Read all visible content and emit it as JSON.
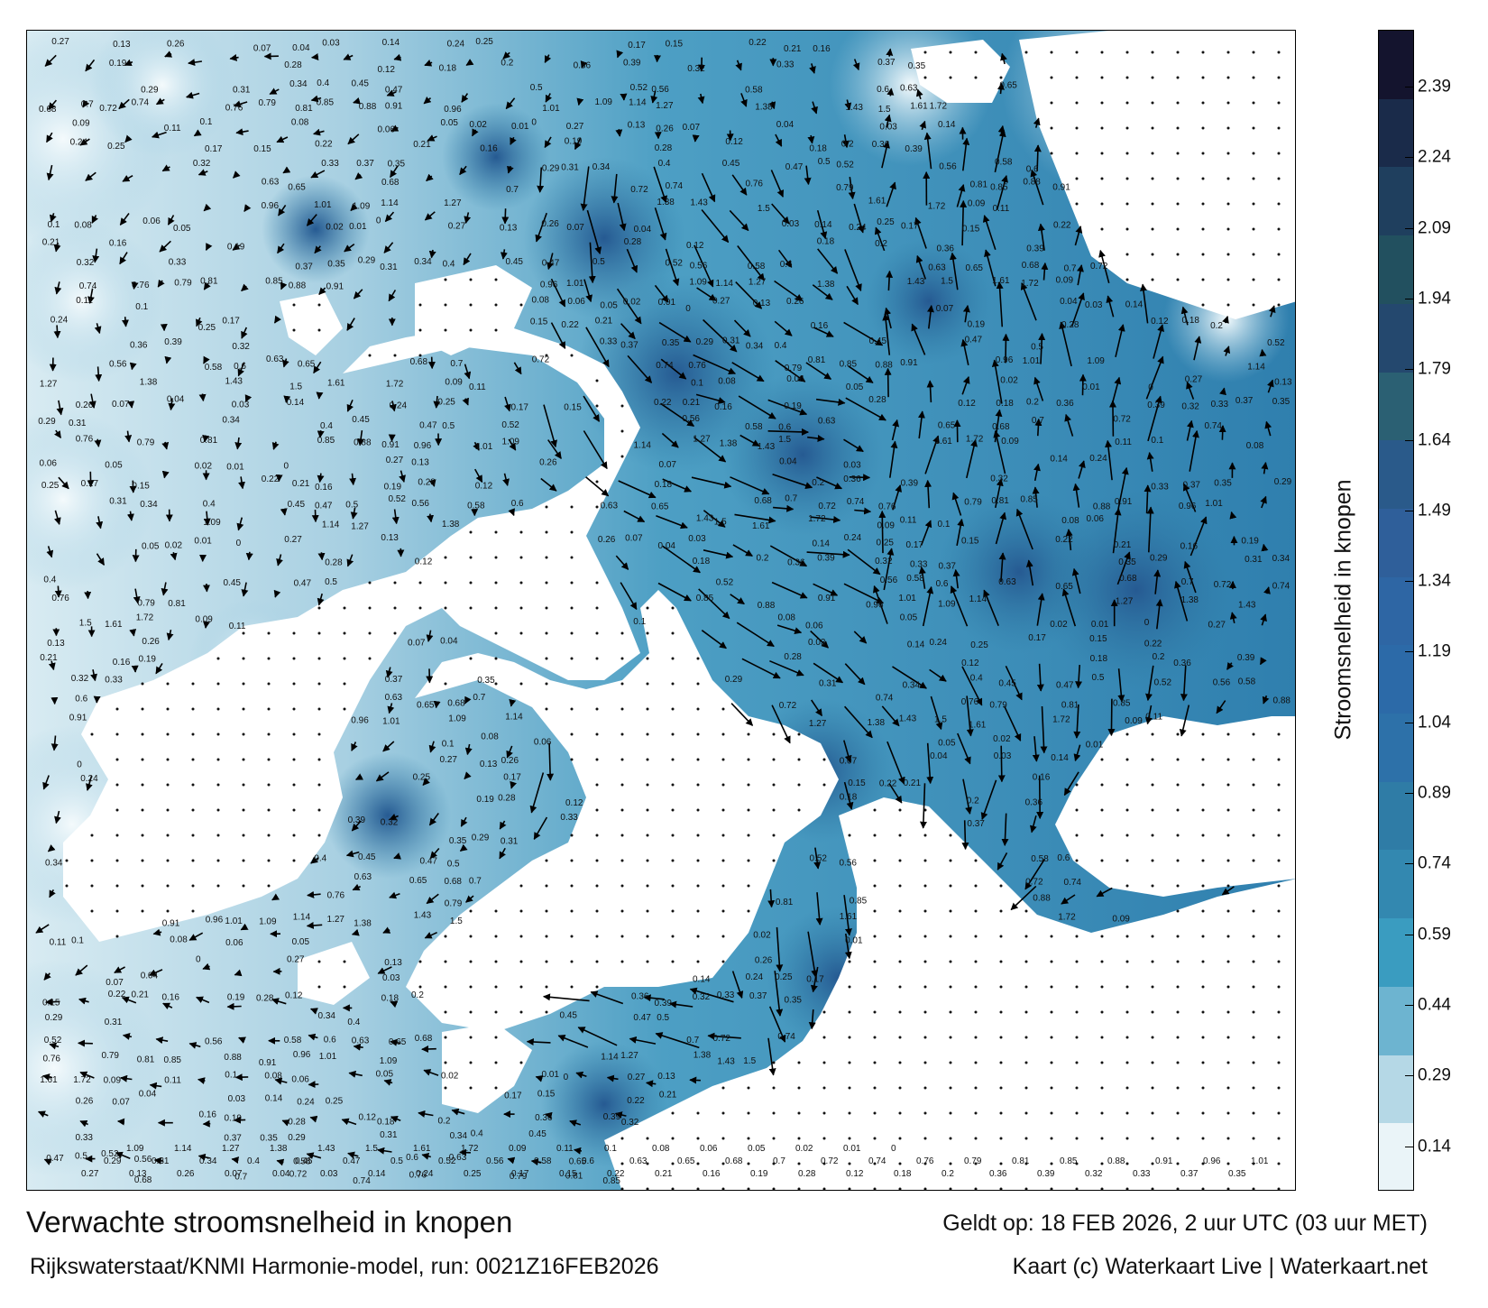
{
  "map": {
    "title": "Verwachte stroomsnelheid in knopen",
    "valid_time": "Geldt op: 18 FEB 2026, 2 uur UTC (03 uur MET)",
    "model_run": "Rijkswaterstaat/KNMI Harmonie-model, run: 0021Z16FEB2026",
    "credit": "Kaart (c) Waterkaart Live | Waterkaart.net",
    "region": "Wadden Sea / Dutch–German coast",
    "land_color": "#ffffff",
    "speed_labels": [
      "0.27",
      "0.13",
      "0.26",
      "0.07",
      "0.04",
      "0.03",
      "0.14",
      "0.24",
      "0.25",
      "0.17",
      "0.15",
      "0.22",
      "0.21",
      "0.16",
      "0.19",
      "0.28",
      "0.12",
      "0.18",
      "0.2",
      "0.36",
      "0.39",
      "0.32",
      "0.33",
      "0.37",
      "0.35",
      "0.29",
      "0.31",
      "0.34",
      "0.4",
      "0.45",
      "0.47",
      "0.5",
      "0.52",
      "0.56",
      "0.58",
      "0.6",
      "0.63",
      "0.65",
      "0.68",
      "0.7",
      "0.72",
      "0.74",
      "0.76",
      "0.79",
      "0.81",
      "0.85",
      "0.88",
      "0.91",
      "0.96",
      "1.01",
      "1.09",
      "1.14",
      "1.27",
      "1.38",
      "1.43",
      "1.5",
      "1.61",
      "1.72",
      "0.09",
      "0.11",
      "0.1",
      "0.08",
      "0.06",
      "0.05",
      "0.02",
      "0.01",
      "0"
    ]
  },
  "colorbar": {
    "label": "Stroomsnelheid in knopen",
    "ticks": [
      "2.39",
      "2.24",
      "2.09",
      "1.94",
      "1.79",
      "1.64",
      "1.49",
      "1.34",
      "1.19",
      "1.04",
      "0.89",
      "0.74",
      "0.59",
      "0.44",
      "0.29",
      "0.14"
    ],
    "bands": [
      {
        "color": "#14142e"
      },
      {
        "color": "#1a2b4a"
      },
      {
        "color": "#1f3f5e"
      },
      {
        "color": "#22505f"
      },
      {
        "color": "#24486e"
      },
      {
        "color": "#2b6073"
      },
      {
        "color": "#2a5a8a"
      },
      {
        "color": "#2f5f9a"
      },
      {
        "color": "#2e66a4"
      },
      {
        "color": "#2c6aa8"
      },
      {
        "color": "#2d71a9"
      },
      {
        "color": "#2f7ca6"
      },
      {
        "color": "#3388b0"
      },
      {
        "color": "#3a9cc0"
      },
      {
        "color": "#6db4d0"
      },
      {
        "color": "#b5d8e6"
      },
      {
        "color": "#eaf4f8"
      }
    ]
  }
}
